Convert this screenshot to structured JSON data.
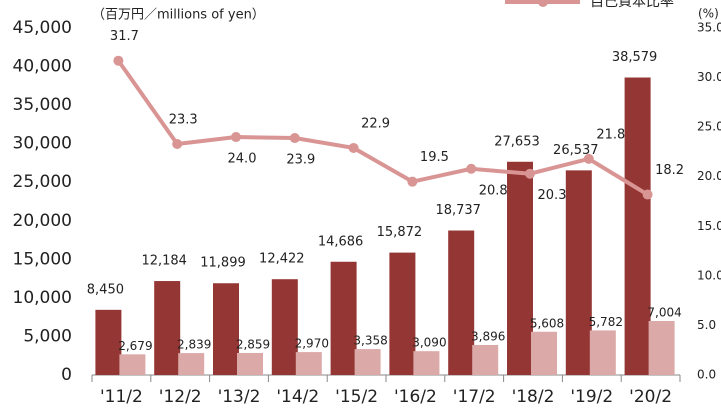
{
  "chart_data": {
    "type": "bar_line",
    "y_label": "（百万円／millions of yen）",
    "y2_label": "(%)",
    "categories": [
      "'11/2",
      "'12/2",
      "'13/2",
      "'14/2",
      "'15/2",
      "'16/2",
      "'17/2",
      "'18/2",
      "'19/2",
      "'20/2"
    ],
    "series": [
      {
        "color": "#943634",
        "values": [
          8450,
          12184,
          11899,
          12422,
          14686,
          15872,
          18737,
          27653,
          26537,
          38579
        ],
        "value_labels": [
          "8,450",
          "12,184",
          "11,899",
          "12,422",
          "14,686",
          "15,872",
          "18,737",
          "27,653",
          "26,537",
          "38,579"
        ]
      },
      {
        "color": "#dba9a8",
        "values": [
          2679,
          2839,
          2859,
          2970,
          3358,
          3090,
          3896,
          5608,
          5782,
          7004
        ],
        "value_labels": [
          "2,679",
          "2,839",
          "2,859",
          "2,970",
          "3,358",
          "3,090",
          "3,896",
          "5,608",
          "5,782",
          "7,004"
        ]
      },
      {
        "name": "自己資本比率",
        "color": "#d99594",
        "axis": "y2",
        "type": "line",
        "values": [
          31.7,
          23.3,
          24.0,
          23.9,
          22.9,
          19.5,
          20.8,
          20.3,
          21.8,
          18.2
        ],
        "value_labels": [
          "31.7",
          "23.3",
          "24.0",
          "23.9",
          "22.9",
          "19.5",
          "20.8",
          "20.3",
          "21.8",
          "18.2"
        ]
      }
    ],
    "ylim": [
      0,
      45000
    ],
    "yticks": [
      0,
      {
        "value": 5000,
        "label": "5,000"
      },
      {
        "value": 10000,
        "label": "10,000"
      },
      {
        "value": 15000,
        "label": "15,000"
      },
      {
        "value": 20000,
        "label": "20,000"
      },
      {
        "value": 25000,
        "label": "25,000"
      },
      {
        "value": 30000,
        "label": "30,000"
      },
      {
        "value": 35000,
        "label": "35,000"
      },
      {
        "value": 40000,
        "label": "40,000"
      },
      {
        "value": 45000,
        "label": "45,000"
      }
    ],
    "y2lim": [
      0,
      35
    ],
    "y2ticks": [
      {
        "value": 0,
        "label": "0.0"
      },
      {
        "value": 5,
        "label": "5.0"
      },
      {
        "value": 10,
        "label": "10.0"
      },
      {
        "value": 15,
        "label": "15.0"
      },
      {
        "value": 20,
        "label": "20.0"
      },
      {
        "value": 25,
        "label": "25.0"
      },
      {
        "value": 30,
        "label": "30.0"
      },
      {
        "value": 35,
        "label": "35.0"
      }
    ],
    "legend": "top-right"
  }
}
